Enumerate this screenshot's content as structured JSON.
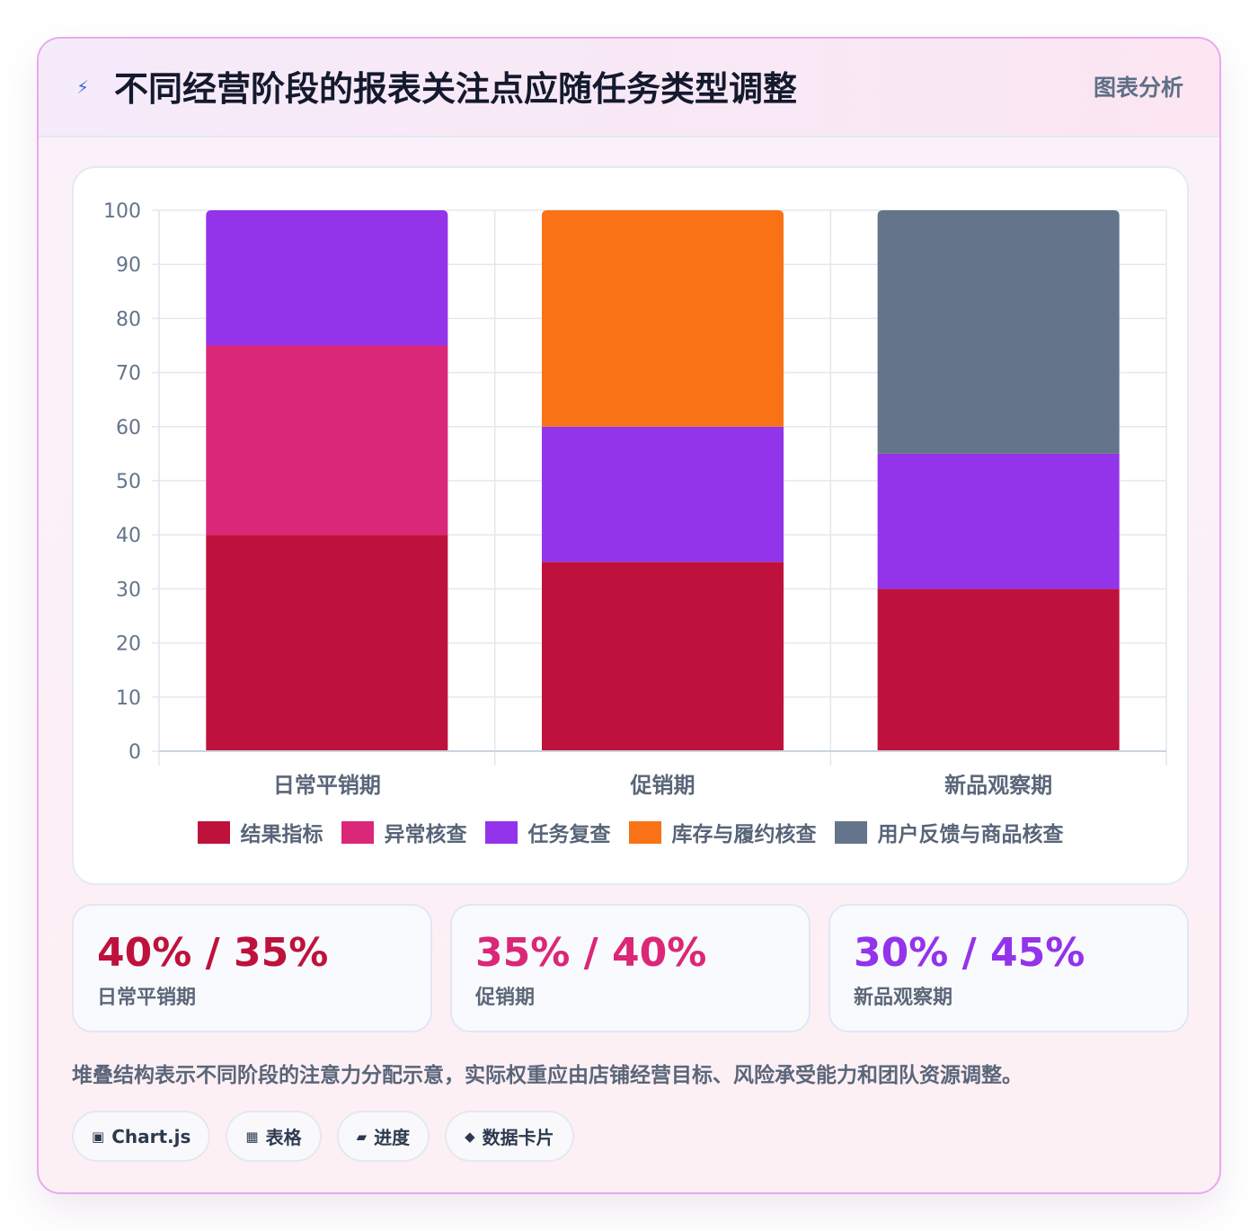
{
  "header": {
    "icon": "lightning-icon",
    "icon_glyph": "⚡",
    "title": "不同经营阶段的报表关注点应随任务类型调整",
    "tag": "图表分析"
  },
  "chart_data": {
    "type": "bar",
    "stacked": true,
    "categories": [
      "日常平销期",
      "促销期",
      "新品观察期"
    ],
    "series": [
      {
        "name": "结果指标",
        "color": "#be123c",
        "values": [
          40,
          35,
          30
        ]
      },
      {
        "name": "异常核查",
        "color": "#db2777",
        "values": [
          35,
          0,
          0
        ]
      },
      {
        "name": "任务复查",
        "color": "#9333ea",
        "values": [
          25,
          25,
          25
        ]
      },
      {
        "name": "库存与履约核查",
        "color": "#f97316",
        "values": [
          0,
          40,
          0
        ]
      },
      {
        "name": "用户反馈与商品核查",
        "color": "#64748b",
        "values": [
          0,
          0,
          45
        ]
      }
    ],
    "ylim": [
      0,
      100
    ],
    "yticks": [
      0,
      10,
      20,
      30,
      40,
      50,
      60,
      70,
      80,
      90,
      100
    ],
    "grid": true,
    "legend": "bottom"
  },
  "stats": [
    {
      "value": "40% / 35%",
      "label": "日常平销期",
      "color": "#be123c"
    },
    {
      "value": "35% / 40%",
      "label": "促销期",
      "color": "#db2777"
    },
    {
      "value": "30% / 45%",
      "label": "新品观察期",
      "color": "#9333ea"
    }
  ],
  "note": "堆叠结构表示不同阶段的注意力分配示意，实际权重应由店铺经营目标、风险承受能力和团队资源调整。",
  "tags": [
    {
      "icon": "square-icon",
      "glyph": "▣",
      "label": "Chart.js"
    },
    {
      "icon": "table-icon",
      "glyph": "▦",
      "label": "表格"
    },
    {
      "icon": "progress-icon",
      "glyph": "▰",
      "label": "进度"
    },
    {
      "icon": "diamond-icon",
      "glyph": "◆",
      "label": "数据卡片"
    }
  ]
}
